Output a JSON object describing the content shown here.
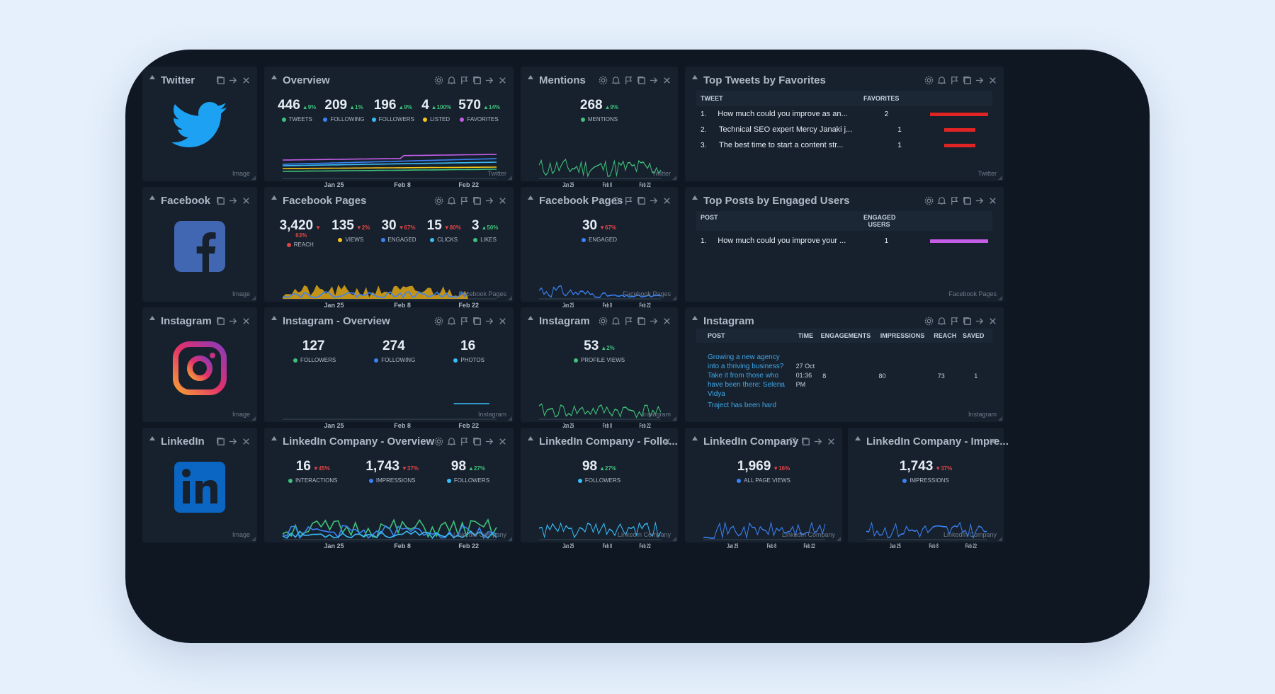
{
  "twitter_logo": {
    "title": "Twitter",
    "footer": "Image",
    "color": "#1da1f2"
  },
  "facebook_logo": {
    "title": "Facebook",
    "footer": "Image",
    "color": "#4267b2"
  },
  "instagram_logo": {
    "title": "Instagram",
    "footer": "Image"
  },
  "linkedin_logo": {
    "title": "LinkedIn",
    "footer": "Image",
    "color": "#0a66c2"
  },
  "overview": {
    "title": "Overview",
    "footer": "Twitter",
    "metrics": [
      {
        "value": "446",
        "change": "▲9%",
        "dir": "up",
        "label": "TWEETS",
        "color": "#3ec27a"
      },
      {
        "value": "209",
        "change": "▲1%",
        "dir": "up",
        "label": "FOLLOWING",
        "color": "#3b82f6"
      },
      {
        "value": "196",
        "change": "▲9%",
        "dir": "up",
        "label": "FOLLOWERS",
        "color": "#38bdf8"
      },
      {
        "value": "4",
        "change": "▲100%",
        "dir": "up",
        "label": "LISTED",
        "color": "#f5c518"
      },
      {
        "value": "570",
        "change": "▲14%",
        "dir": "up",
        "label": "FAVORITES",
        "color": "#c45ce6"
      }
    ],
    "x_labels": [
      "Jan 25",
      "Feb 8",
      "Feb 22"
    ]
  },
  "mentions": {
    "title": "Mentions",
    "footer": "Twitter",
    "metrics": [
      {
        "value": "268",
        "change": "▲9%",
        "dir": "up",
        "label": "MENTIONS",
        "color": "#3ec27a"
      }
    ],
    "x_labels": [
      "Jan 25",
      "Feb 8",
      "Feb 22"
    ]
  },
  "top_tweets": {
    "title": "Top Tweets by Favorites",
    "footer": "Twitter",
    "col_tweet": "TWEET",
    "col_fav": "FAVORITES",
    "rows": [
      {
        "rank": "1.",
        "text": "How much could you improve as an...",
        "value": "2",
        "bar": 1.0
      },
      {
        "rank": "2.",
        "text": "Technical SEO expert Mercy Janaki j...",
        "value": "1",
        "bar": 0.5
      },
      {
        "rank": "3.",
        "text": "The best time to start a content str...",
        "value": "1",
        "bar": 0.5
      }
    ]
  },
  "fb_pages_1": {
    "title": "Facebook Pages",
    "footer": "Facebook Pages",
    "metrics": [
      {
        "value": "3,420",
        "change": "▼",
        "dir": "dn",
        "sub": "63%",
        "label": "REACH",
        "color": "#e04545"
      },
      {
        "value": "135",
        "change": "▼2%",
        "dir": "dn",
        "label": "VIEWS",
        "color": "#f5c518"
      },
      {
        "value": "30",
        "change": "▼67%",
        "dir": "dn",
        "label": "ENGAGED",
        "color": "#3b82f6"
      },
      {
        "value": "15",
        "change": "▼80%",
        "dir": "dn",
        "label": "CLICKS",
        "color": "#38bdf8"
      },
      {
        "value": "3",
        "change": "▲50%",
        "dir": "up",
        "label": "LIKES",
        "color": "#3ec27a"
      }
    ],
    "x_labels": [
      "Jan 25",
      "Feb 8",
      "Feb 22"
    ]
  },
  "fb_pages_2": {
    "title": "Facebook Pages",
    "footer": "Facebook Pages",
    "metrics": [
      {
        "value": "30",
        "change": "▼67%",
        "dir": "dn",
        "label": "ENGAGED",
        "color": "#3b82f6"
      }
    ],
    "x_labels": [
      "Jan 25",
      "Feb 8",
      "Feb 22"
    ]
  },
  "top_posts": {
    "title": "Top Posts by Engaged Users",
    "footer": "Facebook Pages",
    "col_post": "POST",
    "col_eng": "ENGAGED USERS",
    "rows": [
      {
        "rank": "1.",
        "text": "How much could you improve your ...",
        "value": "1",
        "bar": 1.0
      }
    ]
  },
  "ig_overview": {
    "title": "Instagram - Overview",
    "footer": "Instagram",
    "metrics": [
      {
        "value": "127",
        "change": "",
        "dir": "up",
        "label": "FOLLOWERS",
        "color": "#3ec27a"
      },
      {
        "value": "274",
        "change": "",
        "dir": "up",
        "label": "FOLLOWING",
        "color": "#3b82f6"
      },
      {
        "value": "16",
        "change": "",
        "dir": "up",
        "label": "PHOTOS",
        "color": "#38bdf8"
      }
    ],
    "x_labels": [
      "Jan 25",
      "Feb 8",
      "Feb 22"
    ]
  },
  "ig_views": {
    "title": "Instagram",
    "footer": "Instagram",
    "metrics": [
      {
        "value": "53",
        "change": "▲2%",
        "dir": "up",
        "label": "PROFILE VIEWS",
        "color": "#3ec27a"
      }
    ],
    "x_labels": [
      "Jan 25",
      "Feb 8",
      "Feb 22"
    ]
  },
  "ig_posts": {
    "title": "Instagram",
    "footer": "Instagram",
    "cols": [
      "POST",
      "TIME",
      "ENGAGEMENTS",
      "IMPRESSIONS",
      "REACH",
      "SAVED"
    ],
    "row": {
      "post": "Growing a new agency into a thriving business? Take it from those who have been there: Selena Vidya",
      "time": "27 Oct 01:36 PM",
      "engagements": "8",
      "impressions": "80",
      "reach": "73",
      "saved": "1"
    },
    "next_post": "Traject has been hard"
  },
  "li_overview": {
    "title": "LinkedIn Company - Overview",
    "footer": "LinkedIn Company",
    "metrics": [
      {
        "value": "16",
        "change": "▼45%",
        "dir": "dn",
        "label": "INTERACTIONS",
        "color": "#3ec27a"
      },
      {
        "value": "1,743",
        "change": "▼37%",
        "dir": "dn",
        "label": "IMPRESSIONS",
        "color": "#3b82f6"
      },
      {
        "value": "98",
        "change": "▲27%",
        "dir": "up",
        "label": "FOLLOWERS",
        "color": "#38bdf8"
      }
    ],
    "x_labels": [
      "Jan 25",
      "Feb 8",
      "Feb 22"
    ]
  },
  "li_follow": {
    "title": "LinkedIn Company - Follo...",
    "footer": "LinkedIn Company",
    "metrics": [
      {
        "value": "98",
        "change": "▲27%",
        "dir": "up",
        "label": "FOLLOWERS",
        "color": "#38bdf8"
      }
    ],
    "x_labels": [
      "Jan 25",
      "Feb 8",
      "Feb 22"
    ]
  },
  "li_company": {
    "title": "LinkedIn Company",
    "footer": "LinkedIn Company",
    "metrics": [
      {
        "value": "1,969",
        "change": "▼16%",
        "dir": "dn",
        "label": "ALL PAGE VIEWS",
        "color": "#3b82f6"
      }
    ],
    "x_labels": [
      "Jan 25",
      "Feb 8",
      "Feb 22"
    ]
  },
  "li_impr": {
    "title": "LinkedIn Company - Impre...",
    "footer": "LinkedIn Company",
    "metrics": [
      {
        "value": "1,743",
        "change": "▼37%",
        "dir": "dn",
        "label": "IMPRESSIONS",
        "color": "#3b82f6"
      }
    ],
    "x_labels": [
      "Jan 25",
      "Feb 8",
      "Feb 22"
    ]
  }
}
